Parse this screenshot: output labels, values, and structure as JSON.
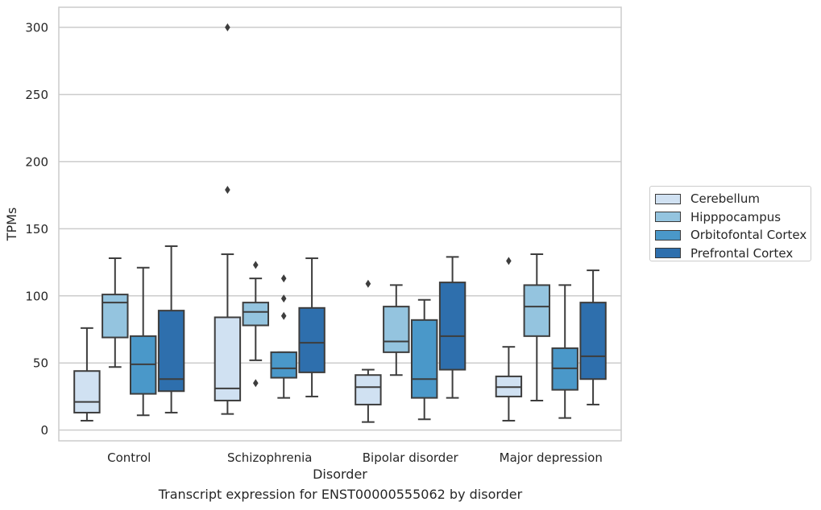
{
  "chart_data": {
    "type": "box",
    "caption": "Transcript expression for ENST00000555062 by disorder",
    "xlabel": "Disorder",
    "ylabel": "TPMs",
    "ylim": [
      -8,
      315
    ],
    "yticks": [
      0,
      50,
      100,
      150,
      200,
      250,
      300
    ],
    "grid": "horizontal",
    "legend_position": "right",
    "categories": [
      "Control",
      "Schizophrenia",
      "Bipolar disorder",
      "Major depression"
    ],
    "series": [
      {
        "name": "Cerebellum",
        "color": "#d0e1f2",
        "boxes": [
          {
            "whislo": 7,
            "q1": 13,
            "med": 21,
            "q3": 44,
            "whishi": 76,
            "fliers": []
          },
          {
            "whislo": 12,
            "q1": 22,
            "med": 31,
            "q3": 84,
            "whishi": 131,
            "fliers": [
              179,
              300
            ]
          },
          {
            "whislo": 6,
            "q1": 19,
            "med": 32,
            "q3": 41,
            "whishi": 45,
            "fliers": [
              109
            ]
          },
          {
            "whislo": 7,
            "q1": 25,
            "med": 32,
            "q3": 40,
            "whishi": 62,
            "fliers": [
              126
            ]
          }
        ]
      },
      {
        "name": "Hipppocampus",
        "color": "#94c4df",
        "boxes": [
          {
            "whislo": 47,
            "q1": 69,
            "med": 95,
            "q3": 101,
            "whishi": 128,
            "fliers": []
          },
          {
            "whislo": 52,
            "q1": 78,
            "med": 88,
            "q3": 95,
            "whishi": 113,
            "fliers": [
              123,
              35
            ]
          },
          {
            "whislo": 41,
            "q1": 58,
            "med": 66,
            "q3": 92,
            "whishi": 108,
            "fliers": []
          },
          {
            "whislo": 22,
            "q1": 70,
            "med": 92,
            "q3": 108,
            "whishi": 131,
            "fliers": []
          }
        ]
      },
      {
        "name": "Orbitofontal Cortex",
        "color": "#4a98c9",
        "boxes": [
          {
            "whislo": 11,
            "q1": 27,
            "med": 49,
            "q3": 70,
            "whishi": 121,
            "fliers": []
          },
          {
            "whislo": 24,
            "q1": 39,
            "med": 46,
            "q3": 58,
            "whishi": 58,
            "fliers": [
              113,
              98,
              85
            ]
          },
          {
            "whislo": 8,
            "q1": 24,
            "med": 38,
            "q3": 82,
            "whishi": 97,
            "fliers": []
          },
          {
            "whislo": 9,
            "q1": 30,
            "med": 46,
            "q3": 61,
            "whishi": 108,
            "fliers": []
          }
        ]
      },
      {
        "name": "Prefrontal Cortex",
        "color": "#2e6fad",
        "boxes": [
          {
            "whislo": 13,
            "q1": 29,
            "med": 38,
            "q3": 89,
            "whishi": 137,
            "fliers": []
          },
          {
            "whislo": 25,
            "q1": 43,
            "med": 65,
            "q3": 91,
            "whishi": 128,
            "fliers": []
          },
          {
            "whislo": 24,
            "q1": 45,
            "med": 70,
            "q3": 110,
            "whishi": 129,
            "fliers": []
          },
          {
            "whislo": 19,
            "q1": 38,
            "med": 55,
            "q3": 95,
            "whishi": 119,
            "fliers": []
          }
        ]
      }
    ]
  }
}
